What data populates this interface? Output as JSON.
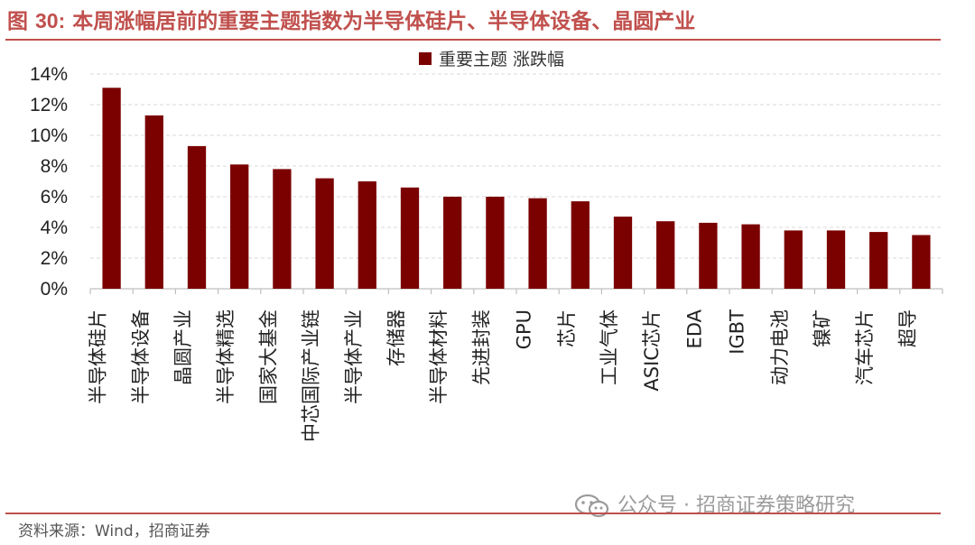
{
  "figure": {
    "title_prefix": "图",
    "title_number": "30:",
    "title_text": "本周涨幅居前的重要主题指数为半导体硅片、半导体设备、晶圆产业"
  },
  "source": "资料来源：Wind，招商证券",
  "watermark": "公众号 · 招商证券策略研究",
  "colors": {
    "bar": "#7b0000",
    "title": "#c0504d",
    "grid": "#d9d9d9"
  },
  "chart_data": {
    "type": "bar",
    "title": "",
    "xlabel": "",
    "ylabel": "",
    "legend_position": "top-center",
    "grid": true,
    "ylim": [
      0,
      14
    ],
    "yticks": [
      0,
      2,
      4,
      6,
      8,
      10,
      12,
      14
    ],
    "ytick_format": "percent",
    "categories": [
      "半导体硅片",
      "半导体设备",
      "晶圆产业",
      "半导体精选",
      "国家大基金",
      "中芯国际产业链",
      "半导体产业",
      "存储器",
      "半导体材料",
      "先进封装",
      "GPU",
      "芯片",
      "工业气体",
      "ASIC芯片",
      "EDA",
      "IGBT",
      "动力电池",
      "镍矿",
      "汽车芯片",
      "超导"
    ],
    "series": [
      {
        "name": "重要主题 涨跌幅",
        "values": [
          13.1,
          11.3,
          9.3,
          8.1,
          7.8,
          7.2,
          7.0,
          6.6,
          6.0,
          6.0,
          5.9,
          5.7,
          4.7,
          4.4,
          4.3,
          4.2,
          3.8,
          3.8,
          3.7,
          3.5
        ]
      }
    ]
  }
}
